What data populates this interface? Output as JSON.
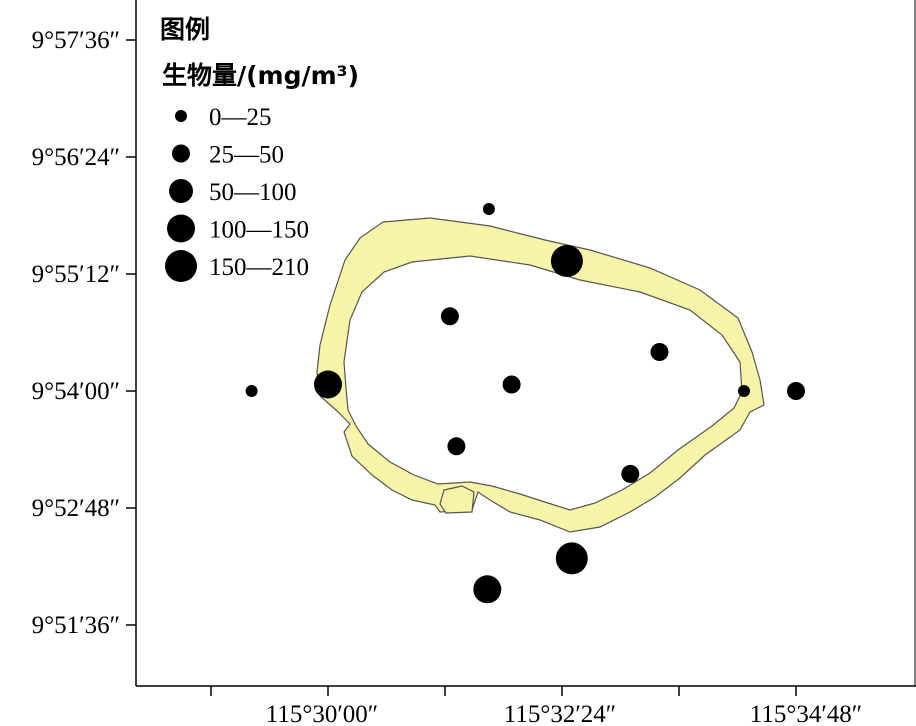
{
  "map": {
    "reef_color": "#f7f4a8",
    "reef_outline": "#555555",
    "y_labels": [
      "9°57′36″",
      "9°56′24″",
      "9°55′12″",
      "9°54′00″",
      "9°52′48″",
      "9°51′36″"
    ],
    "x_labels": [
      "115°30′00″",
      "115°32′24″",
      "115°34′48″"
    ]
  },
  "legend": {
    "title": "图例",
    "unit": "生物量/(mg/m³)",
    "classes": [
      {
        "label": "0—25"
      },
      {
        "label": "25—50"
      },
      {
        "label": "50—100"
      },
      {
        "label": "100—150"
      },
      {
        "label": "150—210"
      }
    ]
  },
  "stations": [
    {
      "lon": "115°31′39″",
      "lat": "9°55′52″",
      "class": 0
    },
    {
      "lon": "115°32′27″",
      "lat": "9°55′20″",
      "class": 4
    },
    {
      "lon": "115°31′15″",
      "lat": "9°54′46″",
      "class": 1
    },
    {
      "lon": "115°33′24″",
      "lat": "9°54′24″",
      "class": 1
    },
    {
      "lon": "115°29′13″",
      "lat": "9°54′00″",
      "class": 0
    },
    {
      "lon": "115°30′00″",
      "lat": "9°54′04″",
      "class": 3
    },
    {
      "lon": "115°31′53″",
      "lat": "9°54′04″",
      "class": 1
    },
    {
      "lon": "115°34′16″",
      "lat": "9°54′00″",
      "class": 0
    },
    {
      "lon": "115°34′48″",
      "lat": "9°54′00″",
      "class": 1
    },
    {
      "lon": "115°31′19″",
      "lat": "9°53′26″",
      "class": 1
    },
    {
      "lon": "115°33′06″",
      "lat": "9°53′09″",
      "class": 1
    },
    {
      "lon": "115°32′30″",
      "lat": "9°52′17″",
      "class": 4
    },
    {
      "lon": "115°31′38″",
      "lat": "9°51′58″",
      "class": 3
    }
  ]
}
